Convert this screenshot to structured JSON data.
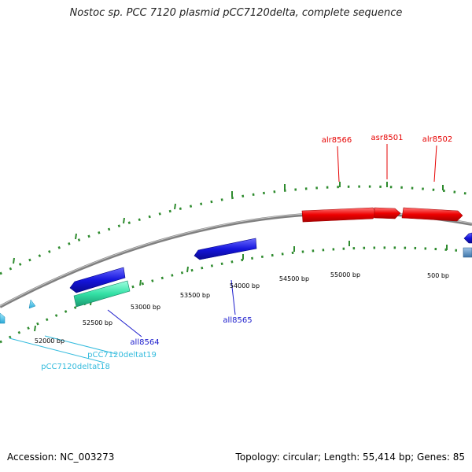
{
  "title": "Nostoc sp. PCC 7120 plasmid pCC7120delta, complete sequence",
  "footer": {
    "accession": "Accession: NC_003273",
    "summary": "Topology: circular; Length: 55,414 bp; Genes: 85"
  },
  "scale_labels": [
    {
      "label": "52000 bp"
    },
    {
      "label": "52500 bp"
    },
    {
      "label": "53000 bp"
    },
    {
      "label": "53500 bp"
    },
    {
      "label": "54000 bp"
    },
    {
      "label": "54500 bp"
    },
    {
      "label": "55000 bp"
    },
    {
      "label": "500 bp"
    }
  ],
  "genes": [
    {
      "name": "alr8566",
      "strand": "forward",
      "color": "#e60000"
    },
    {
      "name": "asr8501",
      "strand": "forward",
      "color": "#e60000"
    },
    {
      "name": "alr8502",
      "strand": "forward",
      "color": "#e60000"
    },
    {
      "name": "all8565",
      "strand": "reverse",
      "color": "#1a1acc"
    },
    {
      "name": "all8564",
      "strand": "reverse",
      "color": "#1a1acc"
    },
    {
      "name": "pCC7120deltat19",
      "strand": "reverse",
      "color": "#33bbdd"
    },
    {
      "name": "pCC7120deltat18",
      "strand": "reverse",
      "color": "#33bbdd"
    }
  ],
  "colors": {
    "forward_gene": "#e60000",
    "reverse_gene": "#1a1acc",
    "trna": "#33bbdd",
    "misc_feature": "#33dd99",
    "backbone": "#808080",
    "tick": "#2e8b2e"
  }
}
